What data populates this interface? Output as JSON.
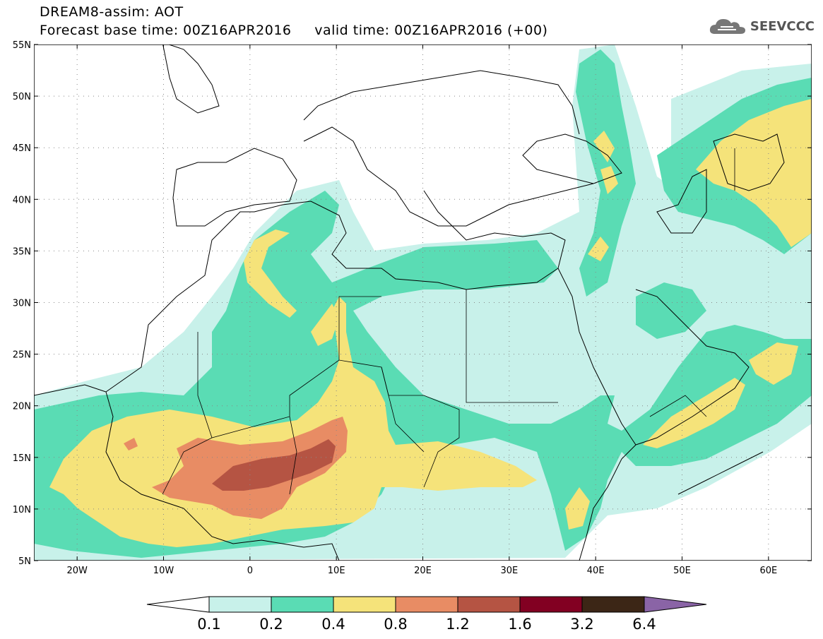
{
  "header": {
    "line1": "DREAM8-assim: AOT",
    "line2": "Forecast base time: 00Z16APR2016     valid time: 00Z16APR2016 (+00)"
  },
  "logo": {
    "text": "SEEVCCC",
    "icon": "cloud-icon"
  },
  "map": {
    "lat_labels": [
      "55N",
      "50N",
      "45N",
      "40N",
      "35N",
      "30N",
      "25N",
      "20N",
      "15N",
      "10N",
      "5N"
    ],
    "lon_labels": [
      "20W",
      "10W",
      "0",
      "10E",
      "20E",
      "30E",
      "40E",
      "50E",
      "60E"
    ],
    "lat_range": [
      5,
      55
    ],
    "lon_range": [
      -25,
      65
    ],
    "grid": "dotted"
  },
  "colorbar": {
    "labels": [
      "0.1",
      "0.2",
      "0.4",
      "0.8",
      "1.2",
      "1.6",
      "3.2",
      "6.4"
    ],
    "colors": [
      "#ffffff",
      "#c8f1ea",
      "#5adcb4",
      "#f5e37a",
      "#e88c64",
      "#b55443",
      "#820022",
      "#3c2616",
      "#8a64a6"
    ]
  }
}
